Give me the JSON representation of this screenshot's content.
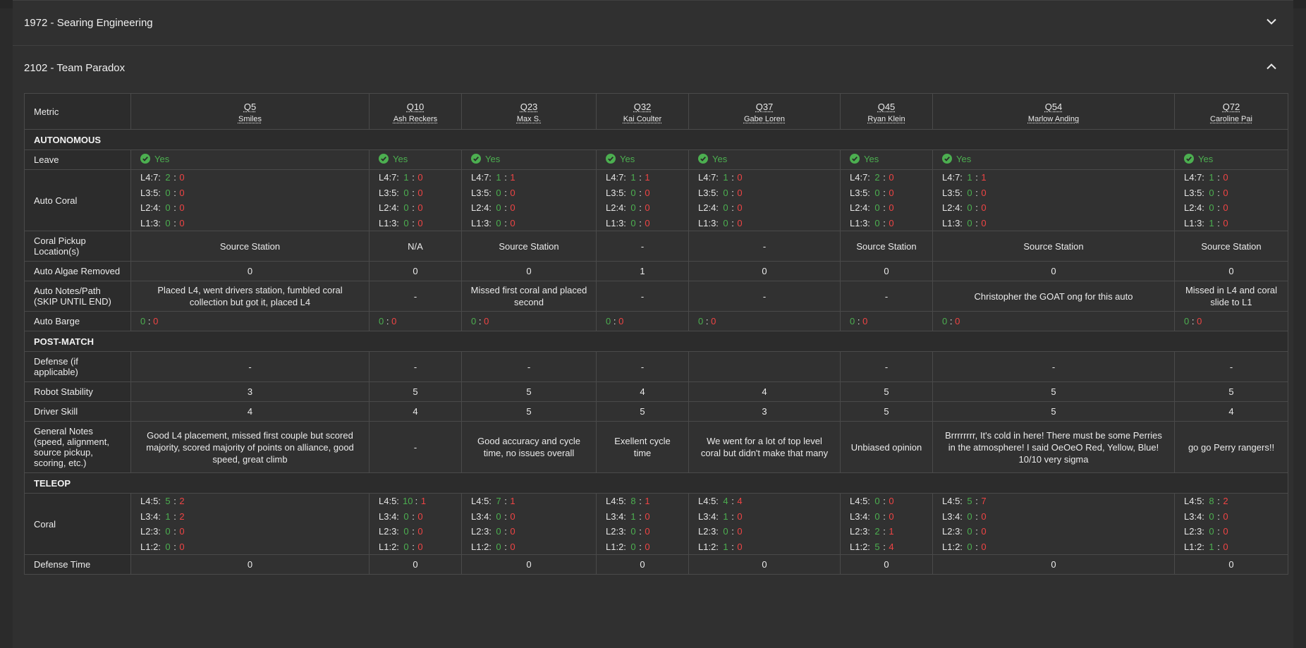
{
  "panels": [
    {
      "title": "1972 - Searing Engineering",
      "expanded": false
    },
    {
      "title": "2102 - Team Paradox",
      "expanded": true
    }
  ],
  "table": {
    "metric_header": "Metric",
    "teams": [
      {
        "q": "Q5",
        "name": "Smiles"
      },
      {
        "q": "Q10",
        "name": "Ash Reckers"
      },
      {
        "q": "Q23",
        "name": "Max S."
      },
      {
        "q": "Q32",
        "name": "Kai Coulter"
      },
      {
        "q": "Q37",
        "name": "Gabe Loren"
      },
      {
        "q": "Q45",
        "name": "Ryan Klein"
      },
      {
        "q": "Q54",
        "name": "Marlow Anding"
      },
      {
        "q": "Q72",
        "name": "Caroline Pai"
      }
    ],
    "sections": {
      "autonomous": "AUTONOMOUS",
      "post_match": "POST-MATCH",
      "teleop": "TELEOP"
    },
    "labels": {
      "leave": "Leave",
      "auto_coral": "Auto Coral",
      "coral_pickup": "Coral Pickup Location(s)",
      "auto_algae": "Auto Algae Removed",
      "auto_notes": "Auto Notes/Path (SKIP UNTIL END)",
      "auto_barge": "Auto Barge",
      "defense": "Defense (if applicable)",
      "robot_stability": "Robot Stability",
      "driver_skill": "Driver Skill",
      "general_notes": "General Notes (speed, alignment, source pickup, scoring, etc.)",
      "coral": "Coral",
      "defense_time": "Defense Time"
    },
    "leave": [
      "Yes",
      "Yes",
      "Yes",
      "Yes",
      "Yes",
      "Yes",
      "Yes",
      "Yes"
    ],
    "auto_coral_labels": [
      "L4:7:",
      "L3:5:",
      "L2:4:",
      "L1:3:"
    ],
    "auto_coral": [
      [
        [
          "2",
          "0"
        ],
        [
          "0",
          "0"
        ],
        [
          "0",
          "0"
        ],
        [
          "0",
          "0"
        ]
      ],
      [
        [
          "1",
          "0"
        ],
        [
          "0",
          "0"
        ],
        [
          "0",
          "0"
        ],
        [
          "0",
          "0"
        ]
      ],
      [
        [
          "1",
          "1"
        ],
        [
          "0",
          "0"
        ],
        [
          "0",
          "0"
        ],
        [
          "0",
          "0"
        ]
      ],
      [
        [
          "1",
          "1"
        ],
        [
          "0",
          "0"
        ],
        [
          "0",
          "0"
        ],
        [
          "0",
          "0"
        ]
      ],
      [
        [
          "1",
          "0"
        ],
        [
          "0",
          "0"
        ],
        [
          "0",
          "0"
        ],
        [
          "0",
          "0"
        ]
      ],
      [
        [
          "2",
          "0"
        ],
        [
          "0",
          "0"
        ],
        [
          "0",
          "0"
        ],
        [
          "0",
          "0"
        ]
      ],
      [
        [
          "1",
          "1"
        ],
        [
          "0",
          "0"
        ],
        [
          "0",
          "0"
        ],
        [
          "0",
          "0"
        ]
      ],
      [
        [
          "1",
          "0"
        ],
        [
          "0",
          "0"
        ],
        [
          "0",
          "0"
        ],
        [
          "1",
          "0"
        ]
      ]
    ],
    "coral_pickup": [
      "Source Station",
      "N/A",
      "Source Station",
      "-",
      "-",
      "Source Station",
      "Source Station",
      "Source Station"
    ],
    "auto_algae": [
      "0",
      "0",
      "0",
      "1",
      "0",
      "0",
      "0",
      "0"
    ],
    "auto_notes": [
      "Placed L4, went drivers station, fumbled coral collection but got it, placed L4",
      "-",
      "Missed first coral and placed second",
      "-",
      "-",
      "-",
      "Christopher the GOAT ong for this auto",
      "Missed in L4 and coral slide to L1"
    ],
    "auto_barge": [
      [
        "0",
        "0"
      ],
      [
        "0",
        "0"
      ],
      [
        "0",
        "0"
      ],
      [
        "0",
        "0"
      ],
      [
        "0",
        "0"
      ],
      [
        "0",
        "0"
      ],
      [
        "0",
        "0"
      ],
      [
        "0",
        "0"
      ]
    ],
    "defense": [
      "-",
      "-",
      "-",
      "-",
      "",
      "-",
      "-",
      "-"
    ],
    "robot_stability": [
      "3",
      "5",
      "5",
      "4",
      "4",
      "5",
      "5",
      "5"
    ],
    "driver_skill": [
      "4",
      "4",
      "5",
      "5",
      "3",
      "5",
      "5",
      "4"
    ],
    "general_notes": [
      "Good L4 placement, missed first couple but scored majority, scored majority of points on alliance, good speed, great climb",
      "-",
      "Good accuracy and cycle time, no issues overall",
      "Exellent cycle time",
      "We went for a lot of top level coral but didn't make that many",
      "Unbiased opinion",
      "Brrrrrrrr, It's cold in here! There must be some Perries in the atmosphere! I said OeOeO Red, Yellow, Blue! 10/10 very sigma",
      "go go Perry rangers!!"
    ],
    "coral_labels": [
      "L4:5:",
      "L3:4:",
      "L2:3:",
      "L1:2:"
    ],
    "coral": [
      [
        [
          "5",
          "2"
        ],
        [
          "1",
          "2"
        ],
        [
          "0",
          "0"
        ],
        [
          "0",
          "0"
        ]
      ],
      [
        [
          "10",
          "1"
        ],
        [
          "0",
          "0"
        ],
        [
          "0",
          "0"
        ],
        [
          "0",
          "0"
        ]
      ],
      [
        [
          "7",
          "1"
        ],
        [
          "0",
          "0"
        ],
        [
          "0",
          "0"
        ],
        [
          "0",
          "0"
        ]
      ],
      [
        [
          "8",
          "1"
        ],
        [
          "1",
          "0"
        ],
        [
          "0",
          "0"
        ],
        [
          "0",
          "0"
        ]
      ],
      [
        [
          "4",
          "4"
        ],
        [
          "1",
          "0"
        ],
        [
          "0",
          "0"
        ],
        [
          "1",
          "0"
        ]
      ],
      [
        [
          "0",
          "0"
        ],
        [
          "0",
          "0"
        ],
        [
          "2",
          "1"
        ],
        [
          "5",
          "4"
        ]
      ],
      [
        [
          "5",
          "7"
        ],
        [
          "0",
          "0"
        ],
        [
          "0",
          "0"
        ],
        [
          "0",
          "0"
        ]
      ],
      [
        [
          "8",
          "2"
        ],
        [
          "0",
          "0"
        ],
        [
          "0",
          "0"
        ],
        [
          "1",
          "0"
        ]
      ]
    ],
    "defense_time": [
      "0",
      "0",
      "0",
      "0",
      "0",
      "0",
      "0",
      "0"
    ]
  },
  "colors": {
    "success": "#4caf50",
    "fail": "#ef4444"
  }
}
